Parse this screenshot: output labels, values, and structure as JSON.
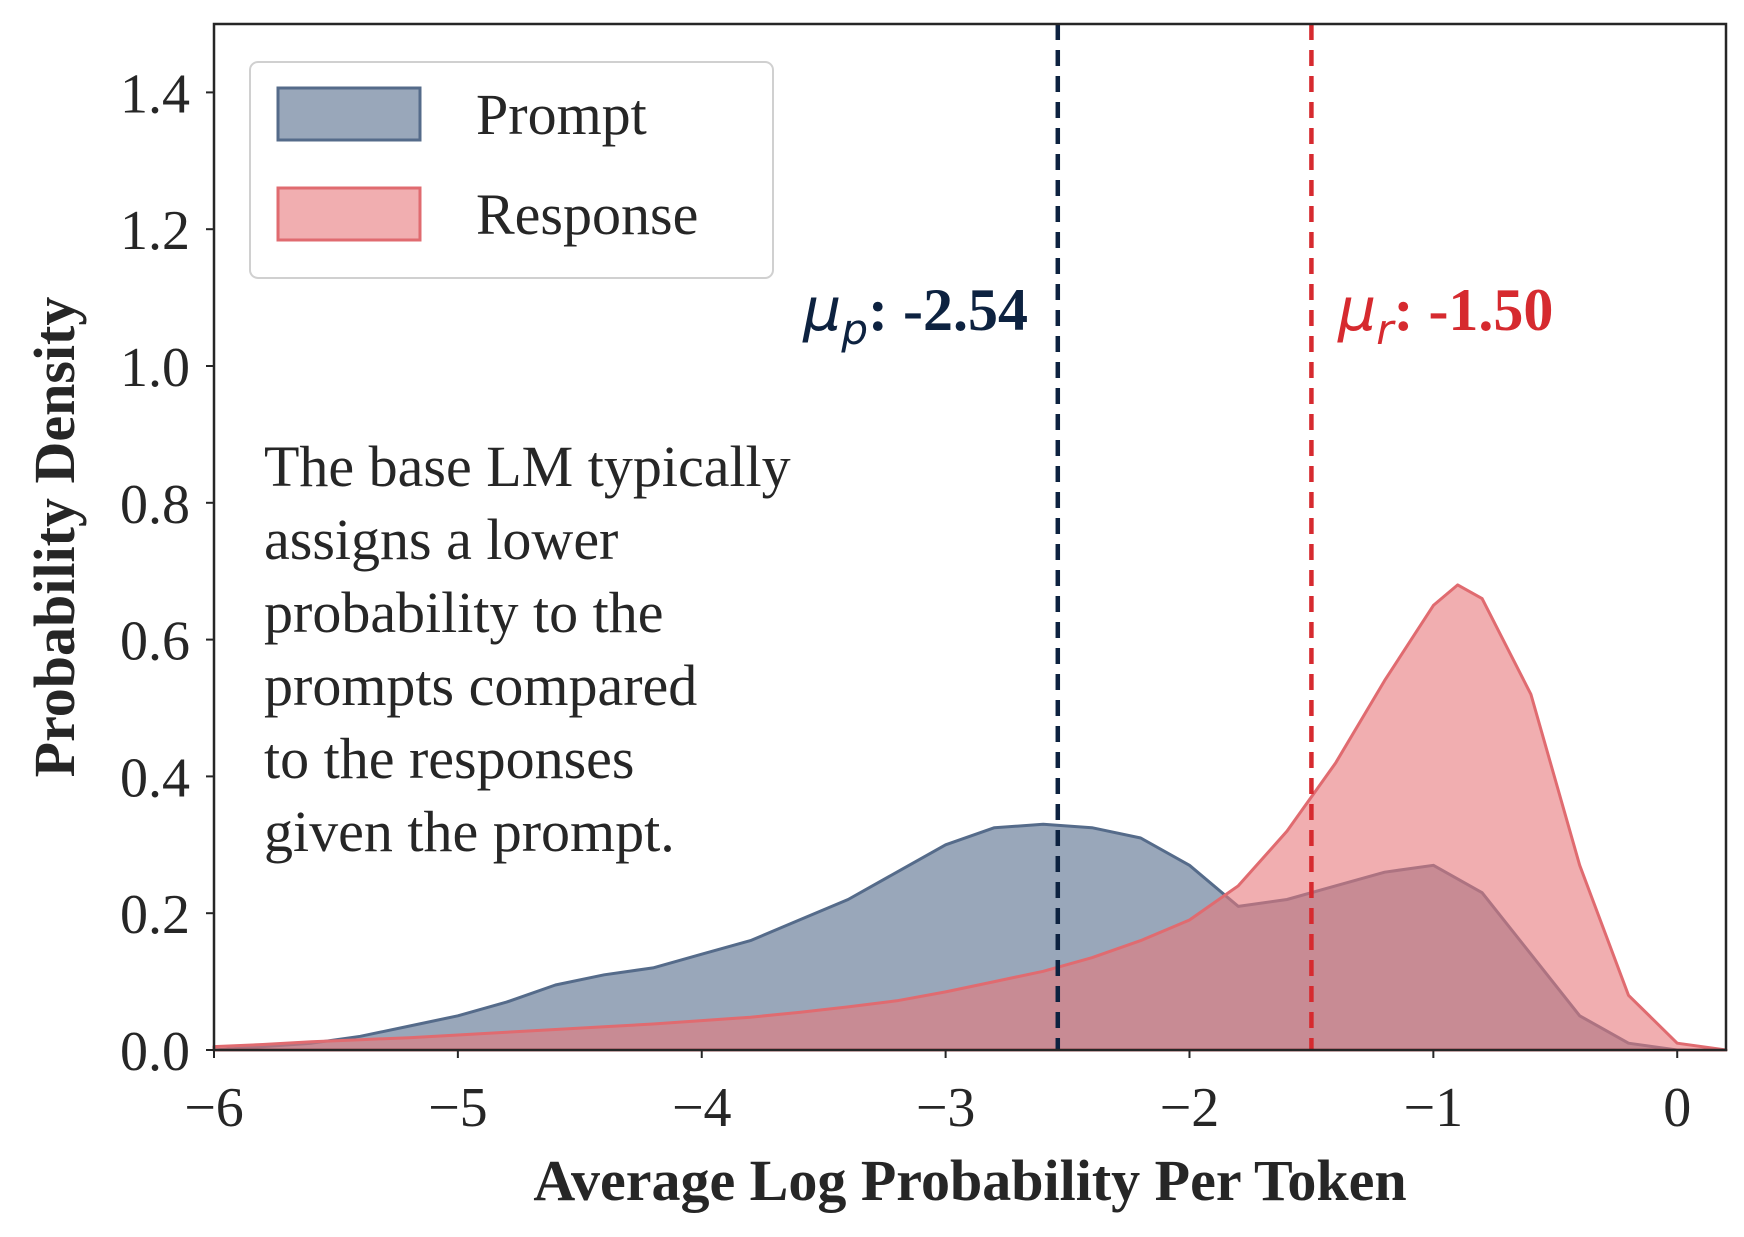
{
  "chart_data": {
    "type": "area",
    "xlabel": "Average Log Probability Per Token",
    "ylabel": "Probability Density",
    "xlim": [
      -6,
      0.2
    ],
    "ylim": [
      0,
      1.5
    ],
    "xticks": [
      -6,
      -5,
      -4,
      -3,
      -2,
      -1,
      0
    ],
    "xtick_labels": [
      "−6",
      "−5",
      "−4",
      "−3",
      "−2",
      "−1",
      "0"
    ],
    "yticks": [
      0.0,
      0.2,
      0.4,
      0.6,
      0.8,
      1.0,
      1.2,
      1.4
    ],
    "ytick_labels": [
      "0.0",
      "0.2",
      "0.4",
      "0.6",
      "0.8",
      "1.0",
      "1.2",
      "1.4"
    ],
    "grid": false,
    "legend_position": "top-left",
    "series": [
      {
        "name": "Prompt",
        "color": "#6e829c",
        "stroke": "#556b8a",
        "x": [
          -6.0,
          -5.8,
          -5.6,
          -5.4,
          -5.2,
          -5.0,
          -4.8,
          -4.6,
          -4.4,
          -4.2,
          -4.0,
          -3.8,
          -3.6,
          -3.4,
          -3.2,
          -3.0,
          -2.8,
          -2.6,
          -2.4,
          -2.2,
          -2.0,
          -1.8,
          -1.6,
          -1.4,
          -1.2,
          -1.0,
          -0.8,
          -0.6,
          -0.4,
          -0.2,
          0.0,
          0.2
        ],
        "y": [
          0.0,
          0.005,
          0.01,
          0.02,
          0.035,
          0.05,
          0.07,
          0.095,
          0.11,
          0.12,
          0.14,
          0.16,
          0.19,
          0.22,
          0.26,
          0.3,
          0.325,
          0.33,
          0.325,
          0.31,
          0.27,
          0.21,
          0.22,
          0.24,
          0.26,
          0.27,
          0.23,
          0.14,
          0.05,
          0.01,
          0.0,
          0.0
        ]
      },
      {
        "name": "Response",
        "color": "#e8787c",
        "stroke": "#e06b70",
        "x": [
          -6.0,
          -5.8,
          -5.6,
          -5.4,
          -5.2,
          -5.0,
          -4.8,
          -4.6,
          -4.4,
          -4.2,
          -4.0,
          -3.8,
          -3.6,
          -3.4,
          -3.2,
          -3.0,
          -2.8,
          -2.6,
          -2.4,
          -2.2,
          -2.0,
          -1.8,
          -1.6,
          -1.4,
          -1.2,
          -1.0,
          -0.9,
          -0.8,
          -0.6,
          -0.4,
          -0.2,
          0.0,
          0.2
        ],
        "y": [
          0.005,
          0.008,
          0.012,
          0.015,
          0.018,
          0.022,
          0.026,
          0.03,
          0.034,
          0.038,
          0.043,
          0.048,
          0.055,
          0.063,
          0.072,
          0.085,
          0.1,
          0.115,
          0.135,
          0.16,
          0.19,
          0.24,
          0.32,
          0.42,
          0.54,
          0.65,
          0.68,
          0.66,
          0.52,
          0.27,
          0.08,
          0.01,
          0.0
        ]
      }
    ],
    "mean_lines": [
      {
        "series": "Prompt",
        "x": -2.54,
        "color": "#0d2240",
        "label": ": -2.54",
        "mu_symbol": "μ",
        "subscript": "p"
      },
      {
        "series": "Response",
        "x": -1.5,
        "color": "#d62a2f",
        "label": ": -1.50",
        "mu_symbol": "μ",
        "subscript": "r"
      }
    ],
    "annotation": [
      "The base LM typically",
      "assigns a lower",
      "probability to the",
      "prompts compared",
      "to the responses",
      "given the prompt."
    ]
  }
}
